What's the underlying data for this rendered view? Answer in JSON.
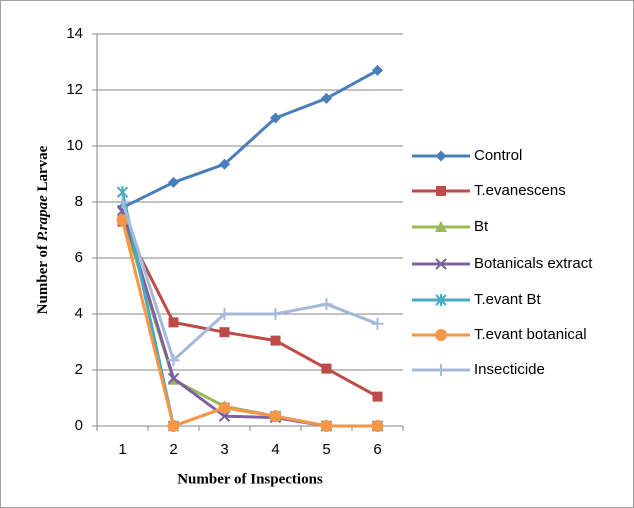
{
  "chart_data": {
    "type": "line",
    "x_label": "Number of Inspections",
    "y_label_parts": [
      "Number of ",
      "P.rapae",
      " Larvae"
    ],
    "categories": [
      "1",
      "2",
      "3",
      "4",
      "5",
      "6"
    ],
    "ylim": [
      0,
      14
    ],
    "yticks": [
      0,
      2,
      4,
      6,
      8,
      10,
      12,
      14
    ],
    "grid": true,
    "legend": "right",
    "series": [
      {
        "name": "Control",
        "color": "#4a7ebb",
        "marker": "diamond",
        "values": [
          7.8,
          8.7,
          9.35,
          11.0,
          11.7,
          12.7
        ]
      },
      {
        "name": "T.evanescens",
        "color": "#be4b48",
        "marker": "square",
        "values": [
          7.3,
          3.7,
          3.35,
          3.05,
          2.05,
          1.05
        ]
      },
      {
        "name": "Bt",
        "color": "#98b954",
        "marker": "triangle",
        "values": [
          7.5,
          1.65,
          0.7,
          0.35,
          0,
          0
        ]
      },
      {
        "name": "Botanicals extract",
        "color": "#7d60a0",
        "marker": "x",
        "values": [
          7.7,
          1.7,
          0.35,
          0.3,
          0,
          0
        ]
      },
      {
        "name": "T.evant Bt",
        "color": "#46aac5",
        "marker": "asterisk",
        "values": [
          8.35,
          0,
          0.65,
          0.35,
          0,
          0
        ]
      },
      {
        "name": "T.evant botanical",
        "color": "#f79646",
        "marker": "circle",
        "values": [
          7.35,
          0,
          0.65,
          0.35,
          0,
          0
        ]
      },
      {
        "name": "Insecticide",
        "color": "#a5b9d8",
        "marker": "plus",
        "values": [
          8.0,
          2.35,
          4.0,
          4.0,
          4.35,
          3.65
        ]
      }
    ]
  }
}
